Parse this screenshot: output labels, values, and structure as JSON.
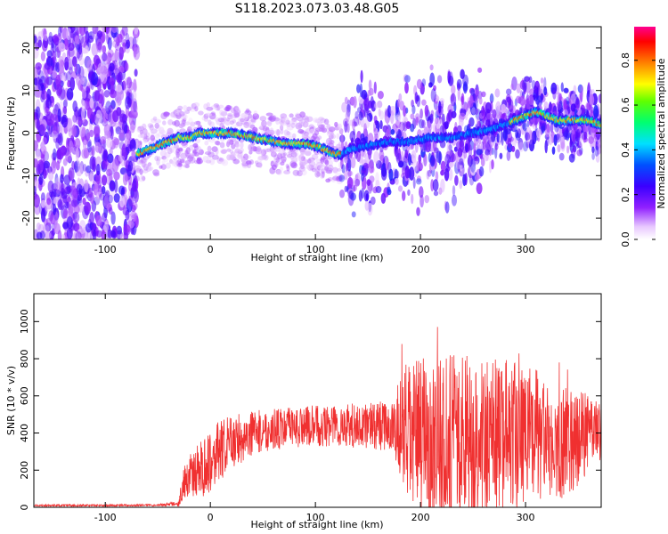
{
  "title": "S118.2023.073.03.48.G05",
  "chart_data": [
    {
      "type": "heatmap",
      "xlabel": "Height of straight line (km)",
      "ylabel": "Frequency (Hz)",
      "xlim": [
        -168,
        372
      ],
      "ylim": [
        -25,
        25
      ],
      "xticks": [
        -100,
        0,
        100,
        200,
        300
      ],
      "yticks": [
        -20,
        -10,
        0,
        10,
        20
      ],
      "colorbar": {
        "label": "Normalized spectral amplitude",
        "range": [
          0,
          0.95
        ],
        "ticks": [
          "0.0",
          "0.2",
          "0.4",
          "0.6",
          "0.8"
        ],
        "colormap": "rainbow"
      },
      "ridge": {
        "x": [
          -70,
          -60,
          -50,
          -40,
          -30,
          -20,
          -10,
          0,
          10,
          20,
          30,
          40,
          50,
          60,
          70,
          80,
          90,
          100,
          110,
          120,
          125,
          130,
          150,
          170,
          190,
          210,
          230,
          250,
          270,
          290,
          300,
          310,
          320,
          330,
          340,
          350,
          360,
          372
        ],
        "y": [
          -5,
          -4,
          -3,
          -2,
          -1,
          -1,
          0,
          0,
          0,
          0,
          -0.5,
          -1,
          -1.5,
          -2,
          -2.5,
          -2.5,
          -2.5,
          -3,
          -4,
          -5,
          -5,
          -4,
          -3,
          -2,
          -2,
          -1,
          -1,
          0,
          1,
          3,
          4,
          5,
          4,
          3,
          3,
          3,
          3,
          2
        ]
      }
    },
    {
      "type": "line",
      "xlabel": "Height of straight line (km)",
      "ylabel": "SNR (10 * v/v)",
      "xlim": [
        -168,
        372
      ],
      "ylim": [
        0,
        1150
      ],
      "xticks": [
        -100,
        0,
        100,
        200,
        300
      ],
      "yticks": [
        0,
        200,
        400,
        600,
        800,
        1000
      ],
      "series": [
        {
          "color": "#f03030",
          "envelope": {
            "x": [
              -168,
              -100,
              -50,
              -30,
              -25,
              -10,
              0,
              20,
              40,
              60,
              80,
              100,
              120,
              140,
              160,
              175,
              180,
              190,
              200,
              220,
              240,
              260,
              280,
              300,
              310,
              320,
              330,
              340,
              350,
              360,
              372
            ],
            "mean": [
              10,
              10,
              12,
              20,
              150,
              200,
              260,
              350,
              400,
              420,
              430,
              440,
              440,
              440,
              440,
              430,
              400,
              380,
              380,
              380,
              380,
              380,
              380,
              370,
              380,
              350,
              300,
              380,
              380,
              400,
              400
            ],
            "spread": [
              5,
              5,
              5,
              15,
              100,
              150,
              180,
              150,
              120,
              110,
              110,
              110,
              120,
              120,
              130,
              140,
              350,
              400,
              420,
              450,
              450,
              450,
              420,
              400,
              380,
              300,
              280,
              300,
              280,
              200,
              150
            ]
          }
        }
      ]
    }
  ]
}
